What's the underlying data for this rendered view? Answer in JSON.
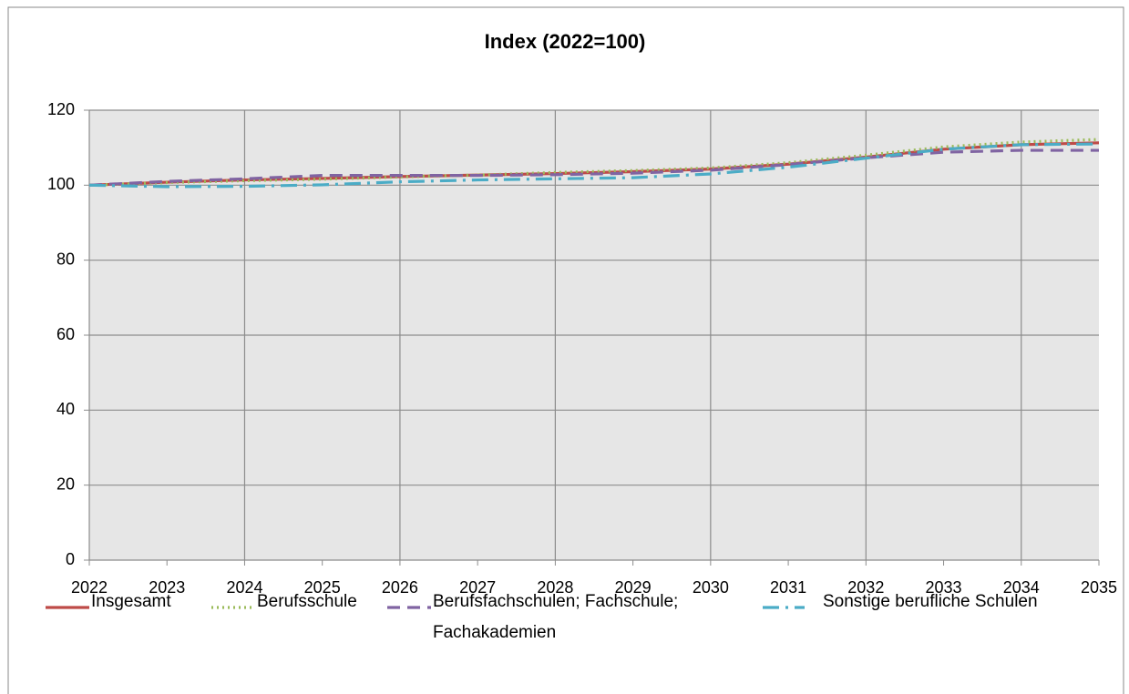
{
  "chart_data": {
    "type": "line",
    "title": "Index (2022=100)",
    "x": [
      2022,
      2023,
      2024,
      2025,
      2026,
      2027,
      2028,
      2029,
      2030,
      2031,
      2032,
      2033,
      2034,
      2035
    ],
    "series": [
      {
        "name": "Insgesamt",
        "color": "#be4b48",
        "dash": "solid",
        "values": [
          100,
          100.8,
          101.4,
          101.8,
          102.3,
          102.7,
          103.1,
          103.6,
          104.3,
          105.6,
          107.5,
          109.6,
          110.8,
          111.3
        ]
      },
      {
        "name": "Berufsschule",
        "color": "#9bbb59",
        "dash": "dotted",
        "values": [
          100,
          100.7,
          101.2,
          101.6,
          102.2,
          102.7,
          103.4,
          103.9,
          104.6,
          106.0,
          108.0,
          110.2,
          111.5,
          112.2
        ]
      },
      {
        "name": "Berufsfachschulen; Fachschule; Fachakademien",
        "color": "#8064a2",
        "dash": "dashed",
        "values": [
          100,
          101,
          101.7,
          102.6,
          102.6,
          102.6,
          102.8,
          103.2,
          104.0,
          105.5,
          107.3,
          108.8,
          109.3,
          109.3
        ]
      },
      {
        "name": "Sonstige berufliche Schulen",
        "color": "#4bacc6",
        "dash": "dashdot",
        "values": [
          100,
          99.6,
          99.7,
          100.1,
          100.9,
          101.4,
          101.7,
          102.0,
          103.0,
          104.8,
          107.2,
          109.6,
          110.8,
          111.0
        ]
      }
    ],
    "xlim": [
      2022,
      2035
    ],
    "xticks": [
      2022,
      2023,
      2024,
      2025,
      2026,
      2027,
      2028,
      2029,
      2030,
      2031,
      2032,
      2033,
      2034,
      2035
    ],
    "ylim": [
      0,
      120
    ],
    "yticks": [
      0,
      20,
      40,
      60,
      80,
      100,
      120
    ],
    "grid": true,
    "legend": "bottom"
  }
}
